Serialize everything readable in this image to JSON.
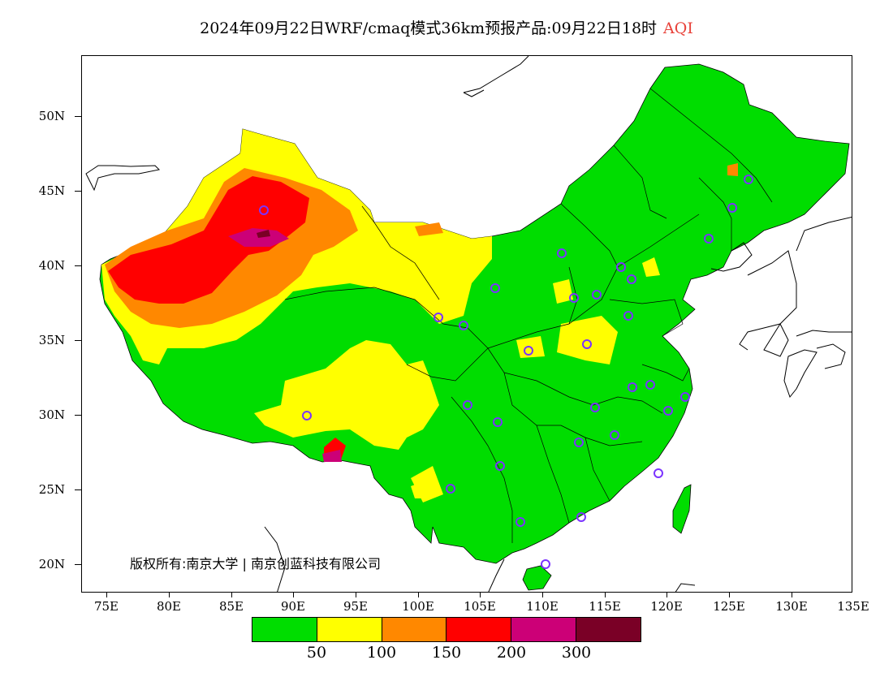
{
  "title": {
    "main": "2024年09月22日WRF/cmaq模式36km预报产品:09月22日18时",
    "variable": "AQI"
  },
  "map": {
    "lat_labels": [
      "50N",
      "45N",
      "40N",
      "35N",
      "30N",
      "25N",
      "20N"
    ],
    "lon_labels": [
      "75E",
      "80E",
      "85E",
      "90E",
      "95E",
      "100E",
      "105E",
      "110E",
      "115E",
      "120E",
      "125E",
      "130E",
      "135E"
    ],
    "copyright": "版权所有:南京大学 | 南京创蓝科技有限公司",
    "colors": {
      "good": "#00dd00",
      "moderate": "#ffff00",
      "sensitive": "#ff8800",
      "unhealthy": "#ff0000",
      "very_unhealthy": "#cc0077",
      "hazardous": "#7a0026"
    }
  },
  "legend": {
    "colors": [
      "#00dd00",
      "#ffff00",
      "#ff8800",
      "#ff0000",
      "#cc0077",
      "#7a0026"
    ],
    "labels": [
      "50",
      "100",
      "150",
      "200",
      "300"
    ]
  }
}
